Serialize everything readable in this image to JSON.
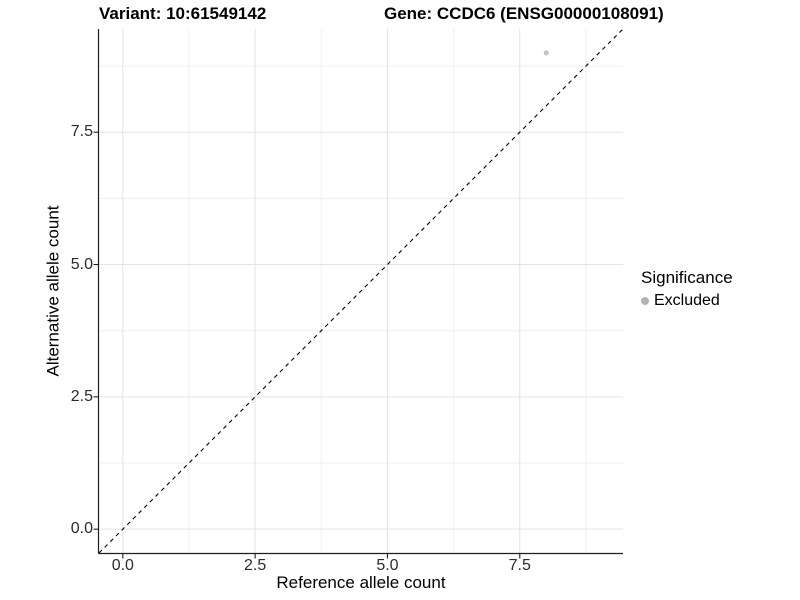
{
  "titles": {
    "variant": "Variant: 10:61549142",
    "gene": "Gene: CCDC6 (ENSG00000108091)"
  },
  "axes": {
    "x_label": "Reference allele count",
    "y_label": "Alternative allele count"
  },
  "legend": {
    "title": "Significance",
    "entries": [
      {
        "label": "Excluded",
        "color": "#b3b3b3"
      }
    ]
  },
  "colors": {
    "background": "#ffffff",
    "grid_major": "#e3e3e3",
    "grid_minor": "#efefef",
    "axis_line": "#1f1f1f",
    "tick_mark": "#1f1f1f",
    "reference_line": "#000000",
    "point": "#c3c3c3"
  },
  "chart_data": {
    "type": "scatter",
    "title": "Variant: 10:61549142 | Gene: CCDC6 (ENSG00000108091)",
    "xlabel": "Reference allele count",
    "ylabel": "Alternative allele count",
    "xlim": [
      -0.45,
      9.45
    ],
    "ylim": [
      -0.45,
      9.45
    ],
    "x_ticks": [
      0.0,
      2.5,
      5.0,
      7.5
    ],
    "x_tick_labels": [
      "0.0",
      "2.5",
      "5.0",
      "7.5"
    ],
    "y_ticks": [
      0.0,
      2.5,
      5.0,
      7.5
    ],
    "y_tick_labels": [
      "0.0",
      "2.5",
      "5.0",
      "7.5"
    ],
    "x_minor_ticks": [
      1.25,
      3.75,
      6.25,
      8.75
    ],
    "y_minor_ticks": [
      1.25,
      3.75,
      6.25,
      8.75
    ],
    "grid": true,
    "legend_position": "right",
    "series": [
      {
        "name": "Excluded",
        "points": [
          {
            "x": 8,
            "y": 9
          }
        ],
        "color": "#c3c3c3",
        "point_radius": 2.6
      }
    ],
    "reference_line": {
      "description": "identity line y = x",
      "slope": 1,
      "intercept": 0,
      "style": "dashed",
      "color": "#000000"
    }
  }
}
